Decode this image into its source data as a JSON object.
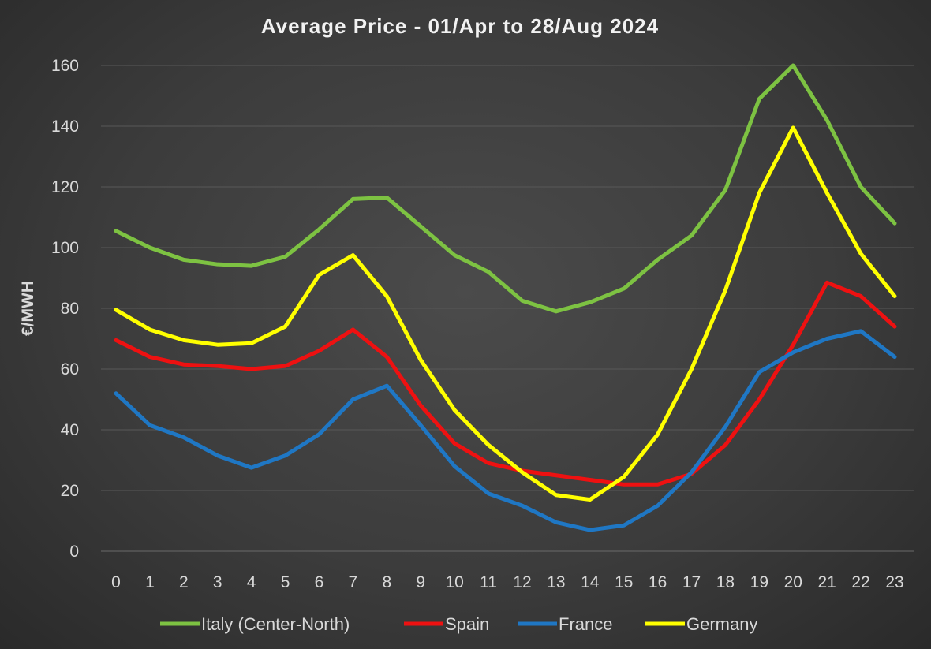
{
  "chart_data": {
    "type": "line",
    "title": "Average Price - 01/Apr to 28/Aug 2024",
    "xlabel": "",
    "ylabel": "€/MWH",
    "ylim": [
      0,
      160
    ],
    "yticks": [
      0,
      20,
      40,
      60,
      80,
      100,
      120,
      140,
      160
    ],
    "grid": true,
    "legend_position": "bottom",
    "x": [
      0,
      1,
      2,
      3,
      4,
      5,
      6,
      7,
      8,
      9,
      10,
      11,
      12,
      13,
      14,
      15,
      16,
      17,
      18,
      19,
      20,
      21,
      22,
      23
    ],
    "series": [
      {
        "name": "Italy (Center-North)",
        "color": "#7dc242",
        "values": [
          105.5,
          100,
          96,
          94.5,
          94,
          97,
          106,
          116,
          116.5,
          107,
          97.5,
          92,
          82.5,
          79,
          82,
          86.5,
          96,
          104,
          119,
          149,
          160,
          142,
          120,
          108
        ]
      },
      {
        "name": "Spain",
        "color": "#ee1111",
        "values": [
          69.5,
          64,
          61.5,
          61,
          60,
          61,
          66,
          73,
          64,
          48,
          35.5,
          29,
          26.5,
          25,
          23.5,
          22,
          22,
          25.5,
          35,
          50,
          68,
          88.5,
          84,
          74
        ]
      },
      {
        "name": "France",
        "color": "#1f77c4",
        "values": [
          52,
          41.5,
          37.5,
          31.5,
          27.5,
          31.5,
          38.5,
          50,
          54.5,
          41.5,
          28,
          19,
          15,
          9.5,
          7,
          8.5,
          15,
          26,
          41,
          59,
          65.5,
          70,
          72.5,
          64
        ]
      },
      {
        "name": "Germany",
        "color": "#ffff00",
        "values": [
          79.5,
          73,
          69.5,
          68,
          68.5,
          74,
          91,
          97.5,
          84,
          63,
          46.5,
          35,
          26,
          18.5,
          17,
          24.5,
          38.5,
          60,
          86,
          118,
          139.5,
          118,
          98,
          84
        ]
      }
    ]
  }
}
